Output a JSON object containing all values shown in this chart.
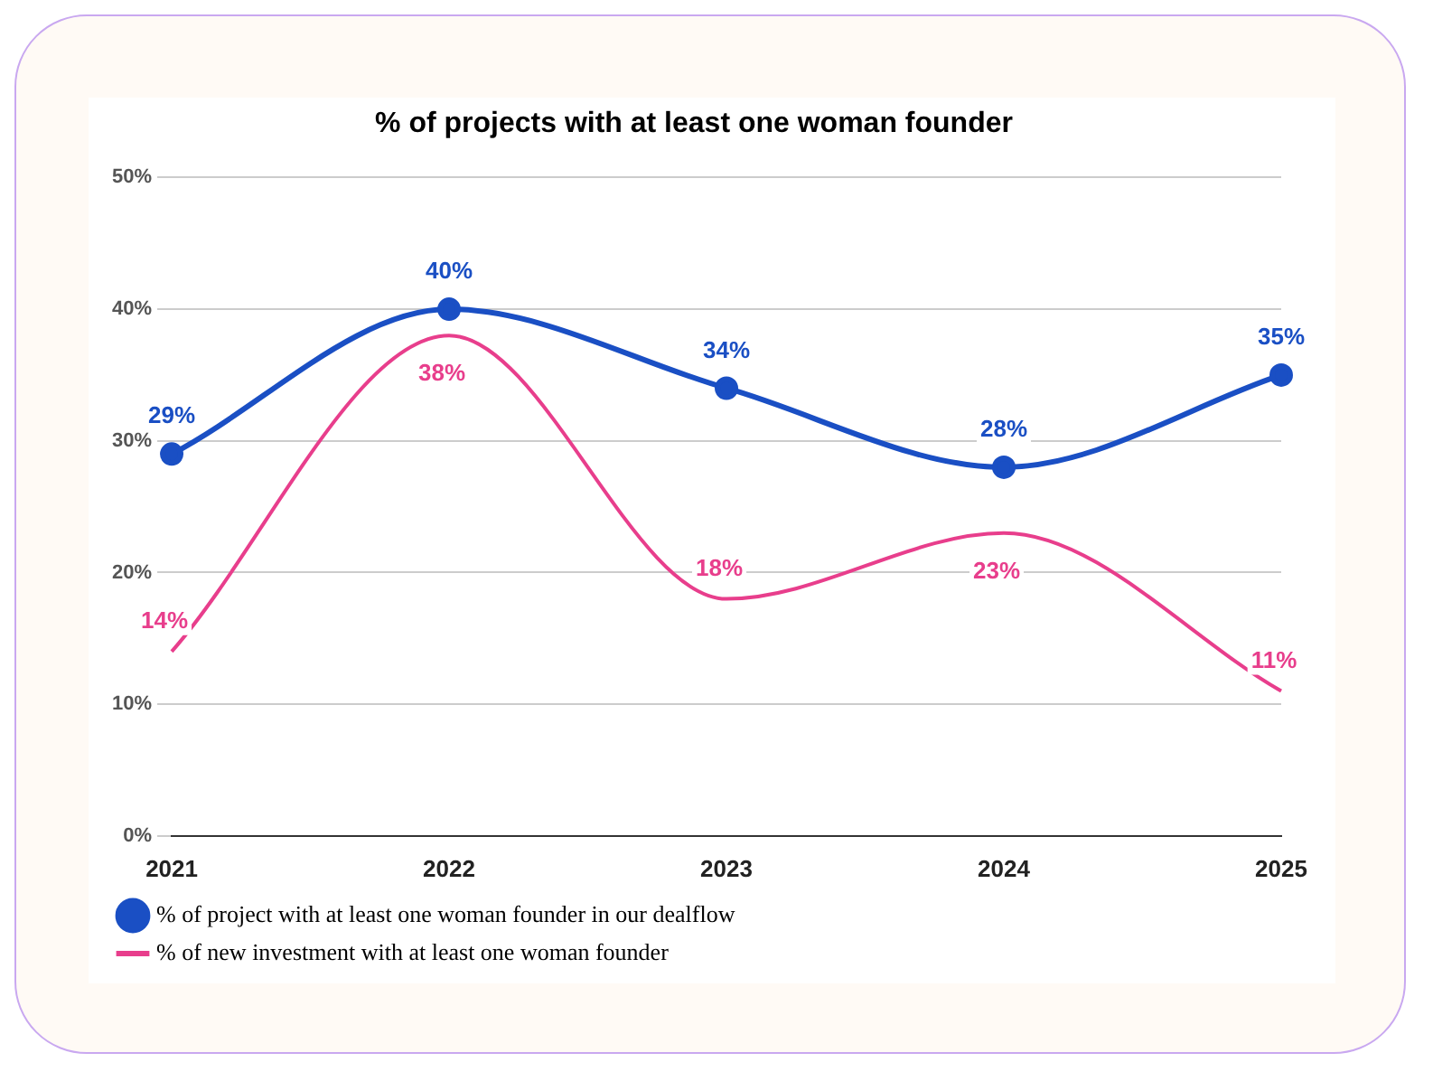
{
  "chart_data": {
    "type": "line",
    "title": "% of projects with at least one woman founder",
    "categories": [
      "2021",
      "2022",
      "2023",
      "2024",
      "2025"
    ],
    "series": [
      {
        "name": "% of project with at least one woman founder in our dealflow",
        "color": "#1a4fc4",
        "values": [
          29,
          40,
          34,
          28,
          35
        ],
        "value_labels": [
          "29%",
          "40%",
          "34%",
          "28%",
          "35%"
        ],
        "marker": "circle"
      },
      {
        "name": "% of new investment with at least one woman founder",
        "color": "#e83e8c",
        "values": [
          14,
          38,
          18,
          23,
          11
        ],
        "value_labels": [
          "14%",
          "38%",
          "18%",
          "23%",
          "11%"
        ],
        "marker": "none"
      }
    ],
    "ylim": [
      0,
      50
    ],
    "yticks": [
      {
        "value": 0,
        "label": "0%"
      },
      {
        "value": 10,
        "label": "10%"
      },
      {
        "value": 20,
        "label": "20%"
      },
      {
        "value": 30,
        "label": "30%"
      },
      {
        "value": 40,
        "label": "40%"
      },
      {
        "value": 50,
        "label": "50%"
      }
    ],
    "grid": "y",
    "legend": "bottom"
  }
}
